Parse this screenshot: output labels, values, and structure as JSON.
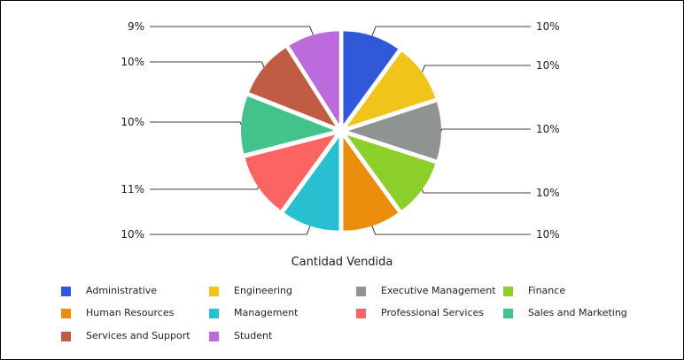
{
  "chart_data": {
    "type": "pie",
    "title": "Cantidad Vendida",
    "slices": [
      {
        "name": "Administrative",
        "value": 10,
        "label": "10%",
        "color": "#3158d8"
      },
      {
        "name": "Engineering",
        "value": 10,
        "label": "10%",
        "color": "#f0c419"
      },
      {
        "name": "Executive Management",
        "value": 10,
        "label": "10%",
        "color": "#8e9591"
      },
      {
        "name": "Finance",
        "value": 10,
        "label": "10%",
        "color": "#8ccf2a"
      },
      {
        "name": "Human Resources",
        "value": 10,
        "label": "10%",
        "color": "#ea8d0c"
      },
      {
        "name": "Management",
        "value": 10,
        "label": "10%",
        "color": "#28bfd0"
      },
      {
        "name": "Professional Services",
        "value": 11,
        "label": "11%",
        "color": "#fc6464"
      },
      {
        "name": "Sales and Marketing",
        "value": 10,
        "label": "10%",
        "color": "#43c28c"
      },
      {
        "name": "Services and Support",
        "value": 10,
        "label": "10%",
        "color": "#c05c44"
      },
      {
        "name": "Student",
        "value": 9,
        "label": "9%",
        "color": "#bb6bdb"
      }
    ],
    "legend_placement": "bottom",
    "start_angle": "top",
    "direction": "clockwise"
  }
}
